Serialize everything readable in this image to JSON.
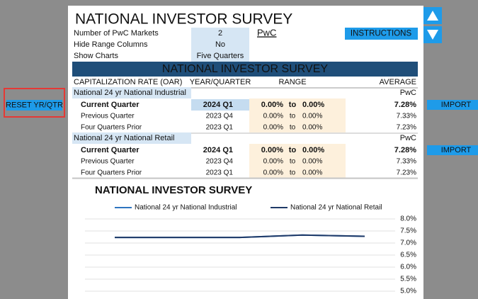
{
  "header": {
    "title": "NATIONAL INVESTOR SURVEY"
  },
  "settings": [
    {
      "label": "Number of PwC Markets",
      "value": "2"
    },
    {
      "label": "Hide Range Columns",
      "value": "No"
    },
    {
      "label": "Show Charts",
      "value": "Five Quarters"
    }
  ],
  "link": "PwC",
  "buttons": {
    "instructions": "INSTRUCTIONS",
    "reset": "RESET YR/QTR",
    "import": "IMPORT"
  },
  "table": {
    "title": "NATIONAL INVESTOR SURVEY",
    "columns": [
      "CAPITALIZATION RATE (OAR)",
      "YEAR/QUARTER",
      "RANGE",
      "AVERAGE"
    ],
    "groups": [
      {
        "name": "National 24 yr National Industrial",
        "source": "PwC",
        "rows": [
          [
            "Current Quarter",
            "2024 Q1",
            "0.00%",
            "to",
            "0.00%",
            "7.28%"
          ],
          [
            "Previous Quarter",
            "2023 Q4",
            "0.00%",
            "to",
            "0.00%",
            "7.33%"
          ],
          [
            "Four Quarters Prior",
            "2023 Q1",
            "0.00%",
            "to",
            "0.00%",
            "7.23%"
          ]
        ]
      },
      {
        "name": "National 24 yr National Retail",
        "source": "PwC",
        "rows": [
          [
            "Current Quarter",
            "2024 Q1",
            "0.00%",
            "to",
            "0.00%",
            "7.28%"
          ],
          [
            "Previous Quarter",
            "2023 Q4",
            "0.00%",
            "to",
            "0.00%",
            "7.33%"
          ],
          [
            "Four Quarters Prior",
            "2023 Q1",
            "0.00%",
            "to",
            "0.00%",
            "7.23%"
          ]
        ]
      }
    ]
  },
  "chart_data": {
    "type": "line",
    "title": "NATIONAL INVESTOR SURVEY",
    "categories": [
      null,
      null,
      null,
      null,
      null
    ],
    "series": [
      {
        "name": "National 24 yr National Industrial",
        "color": "#2e75c0",
        "values": [
          7.23,
          7.23,
          7.23,
          7.33,
          7.28
        ]
      },
      {
        "name": "National 24 yr National Retail",
        "color": "#1f3a68",
        "values": [
          7.23,
          7.23,
          7.23,
          7.33,
          7.28
        ]
      }
    ],
    "ylim": [
      5.0,
      8.0
    ],
    "yticks": [
      {
        "value": 8.0,
        "label": "8.0%"
      },
      {
        "value": 7.5,
        "label": "7.5%"
      },
      {
        "value": 7.0,
        "label": "7.0%"
      },
      {
        "value": 6.5,
        "label": "6.5%"
      },
      {
        "value": 6.0,
        "label": "6.0%"
      },
      {
        "value": 5.5,
        "label": "5.5%"
      },
      {
        "value": 5.0,
        "label": "5.0%"
      }
    ],
    "grid": true
  }
}
